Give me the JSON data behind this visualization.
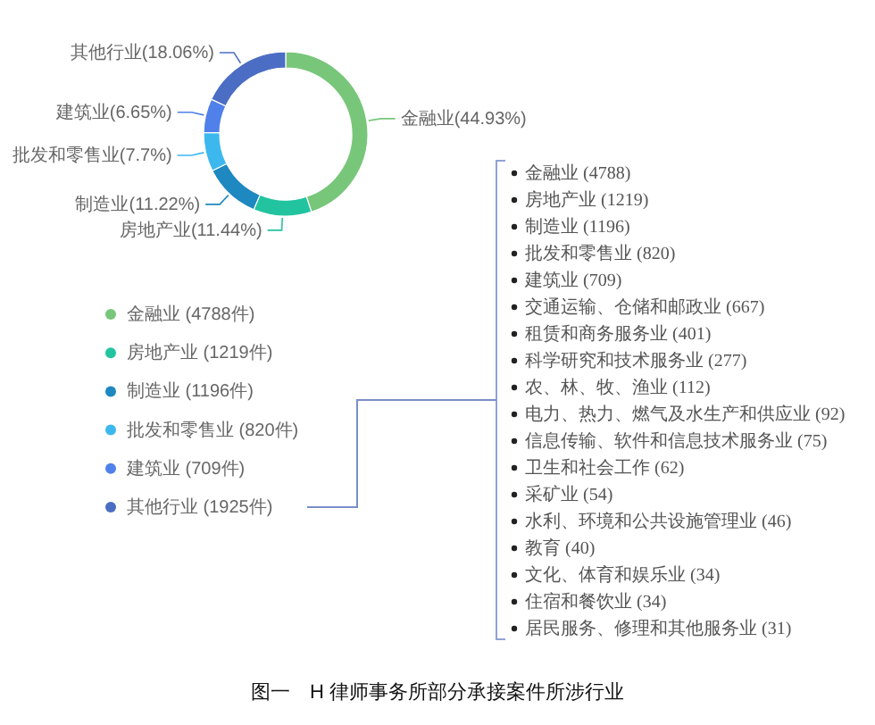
{
  "chart_data": [
    {
      "type": "donut",
      "categories": [
        "金融业 (4788件)",
        "房地产业 (1219件)",
        "制造业 (1196件)",
        "批发和零售业 (820件)",
        "建筑业 (709件)",
        "其他行业 (1925件)"
      ],
      "values": [
        4788,
        1219,
        1196,
        820,
        709,
        1925
      ],
      "colors": [
        "#78c67a",
        "#22c4a0",
        "#1e88c0",
        "#3cb8ee",
        "#5080ea",
        "#4b6ec4"
      ],
      "value_labels": [
        "金融业(44.93%)",
        "房地产业(11.44%)",
        "制造业(11.22%)",
        "批发和零售业(7.7%)",
        "建筑业(6.65%)",
        "其他行业(18.06%)"
      ],
      "legend": "bottom left",
      "annotations": [
        "图一　H 律师事务所部分承接案件所涉行业"
      ]
    },
    {
      "type": "other",
      "annotations": [
        "金融业 (4788)",
        "房地产业 (1219)",
        "制造业 (1196)",
        "批发和零售业 (820)",
        "建筑业 (709)",
        "交通运输、仓储和邮政业 (667)",
        "租赁和商务服务业 (401)",
        "科学研究和技术服务业 (277)",
        "农、林、牧、渔业 (112)",
        "电力、热力、燃气及水生产和供应业 (92)",
        "信息传输、软件和信息技术服务业 (75)",
        "卫生和社会工作 (62)",
        "采矿业 (54)",
        "水利、环境和公共设施管理业 (46)",
        "教育 (40)",
        "文化、体育和娱乐业 (34)",
        "住宿和餐饮业 (34)",
        "居民服务、修理和其他服务业 (31)"
      ]
    }
  ]
}
